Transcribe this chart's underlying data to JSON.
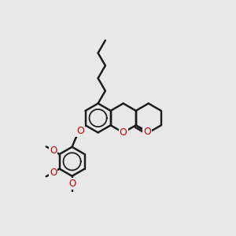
{
  "bg": "#e8e8e8",
  "bc": "#1a1a1a",
  "oc": "#cc0000",
  "lw": 1.75,
  "bl": 0.062,
  "figsize": [
    3.0,
    3.0
  ],
  "dpi": 100,
  "xlim": [
    0.0,
    1.0
  ],
  "ylim": [
    0.0,
    1.0
  ],
  "Acx": 0.415,
  "Acy": 0.5
}
